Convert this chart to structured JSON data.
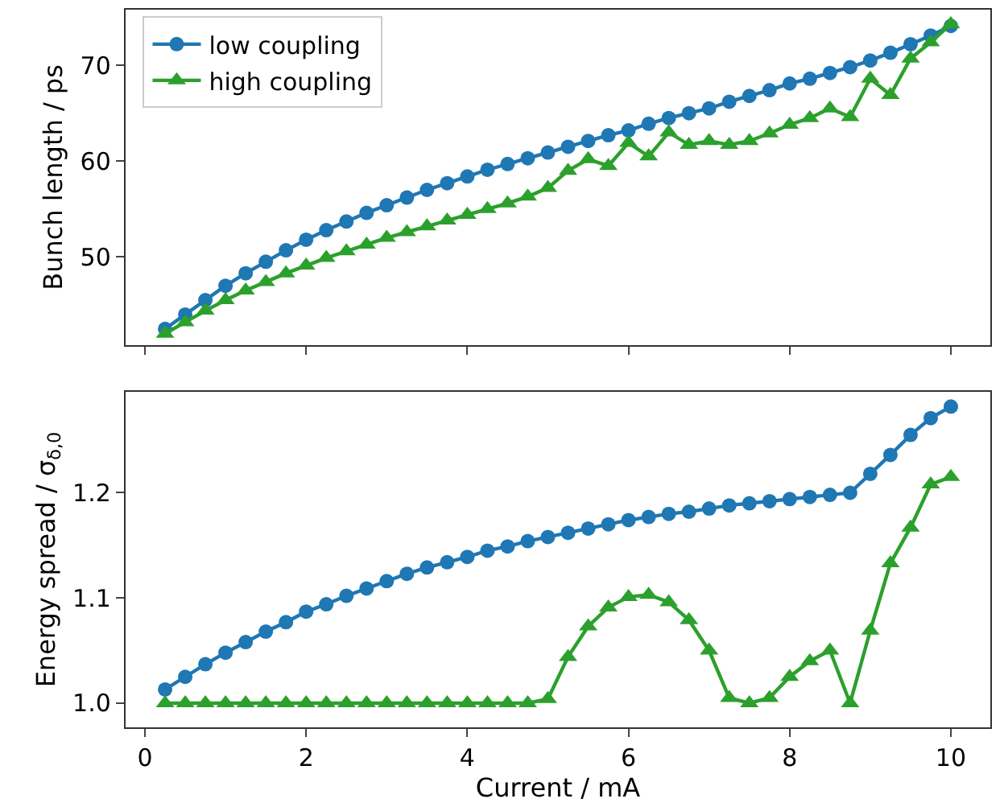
{
  "chart_data": [
    {
      "type": "line",
      "ylabel": "Bunch length / ps",
      "x": [
        0.25,
        0.5,
        0.75,
        1,
        1.25,
        1.5,
        1.75,
        2,
        2.25,
        2.5,
        2.75,
        3,
        3.25,
        3.5,
        3.75,
        4,
        4.25,
        4.5,
        4.75,
        5,
        5.25,
        5.5,
        5.75,
        6,
        6.25,
        6.5,
        6.75,
        7,
        7.25,
        7.5,
        7.75,
        8,
        8.25,
        8.5,
        8.75,
        9,
        9.25,
        9.5,
        9.75,
        10
      ],
      "series": [
        {
          "name": "low coupling",
          "color": "#1f77b4",
          "marker": "circle",
          "values": [
            42.5,
            44.0,
            45.5,
            47.0,
            48.3,
            49.5,
            50.7,
            51.8,
            52.8,
            53.7,
            54.6,
            55.4,
            56.2,
            57.0,
            57.7,
            58.4,
            59.1,
            59.7,
            60.3,
            60.9,
            61.5,
            62.1,
            62.7,
            63.2,
            63.9,
            64.5,
            65.0,
            65.5,
            66.2,
            66.8,
            67.4,
            68.1,
            68.6,
            69.2,
            69.8,
            70.5,
            71.3,
            72.2,
            73.1,
            74.1
          ]
        },
        {
          "name": "high coupling",
          "color": "#2ca02c",
          "marker": "triangle",
          "values": [
            42.0,
            43.2,
            44.4,
            45.5,
            46.5,
            47.4,
            48.3,
            49.1,
            49.9,
            50.6,
            51.3,
            52.0,
            52.6,
            53.2,
            53.8,
            54.4,
            55.0,
            55.6,
            56.3,
            57.2,
            59.0,
            60.2,
            59.5,
            61.9,
            60.5,
            63.0,
            61.7,
            62.1,
            61.7,
            62.1,
            62.9,
            63.8,
            64.5,
            65.5,
            64.6,
            68.6,
            66.9,
            70.7,
            72.4,
            74.3
          ]
        }
      ],
      "xlim": [
        -0.24,
        10.49
      ],
      "xticks": [
        {
          "value": 0,
          "label": null
        },
        {
          "value": 2,
          "label": null
        },
        {
          "value": 4,
          "label": null
        },
        {
          "value": 6,
          "label": null
        },
        {
          "value": 8,
          "label": null
        },
        {
          "value": 10,
          "label": null
        }
      ],
      "ylim": [
        40.8,
        75.8
      ],
      "yticks": [
        50,
        60,
        70
      ],
      "tick_labels": "y",
      "legend": "top left"
    },
    {
      "type": "line",
      "xlabel": "Current / mA",
      "ylabel": "Energy spread / σ$_{δ,0}$",
      "x": [
        0.25,
        0.5,
        0.75,
        1,
        1.25,
        1.5,
        1.75,
        2,
        2.25,
        2.5,
        2.75,
        3,
        3.25,
        3.5,
        3.75,
        4,
        4.25,
        4.5,
        4.75,
        5,
        5.25,
        5.5,
        5.75,
        6,
        6.25,
        6.5,
        6.75,
        7,
        7.25,
        7.5,
        7.75,
        8,
        8.25,
        8.5,
        8.75,
        9,
        9.25,
        9.5,
        9.75,
        10
      ],
      "series": [
        {
          "color": "#1f77b4",
          "marker": "circle",
          "values": [
            1.013,
            1.025,
            1.037,
            1.048,
            1.058,
            1.068,
            1.077,
            1.087,
            1.094,
            1.102,
            1.109,
            1.116,
            1.123,
            1.129,
            1.134,
            1.139,
            1.145,
            1.149,
            1.154,
            1.158,
            1.162,
            1.166,
            1.17,
            1.174,
            1.177,
            1.18,
            1.182,
            1.185,
            1.188,
            1.19,
            1.192,
            1.194,
            1.196,
            1.198,
            1.2,
            1.218,
            1.236,
            1.255,
            1.271,
            1.282
          ]
        },
        {
          "color": "#2ca02c",
          "marker": "triangle",
          "values": [
            1.0,
            1.0,
            1.0,
            1.0,
            1.0,
            1.0,
            1.0,
            1.0,
            1.0,
            1.0,
            1.0,
            1.0,
            1.0,
            1.0,
            1.0,
            1.0,
            1.0,
            1.0,
            1.0,
            1.004,
            1.044,
            1.073,
            1.091,
            1.101,
            1.103,
            1.096,
            1.079,
            1.05,
            1.005,
            1.0,
            1.005,
            1.025,
            1.04,
            1.05,
            1.0,
            1.069,
            1.133,
            1.167,
            1.208,
            1.215
          ]
        }
      ],
      "xlim": [
        -0.24,
        10.49
      ],
      "xticks": [
        0,
        2,
        4,
        6,
        8,
        10
      ],
      "ylim": [
        0.977,
        1.296
      ],
      "yticks": [
        {
          "value": 1.0,
          "label": "1.0"
        },
        {
          "value": 1.1,
          "label": "1.1"
        },
        {
          "value": 1.2,
          "label": "1.2"
        }
      ]
    }
  ]
}
